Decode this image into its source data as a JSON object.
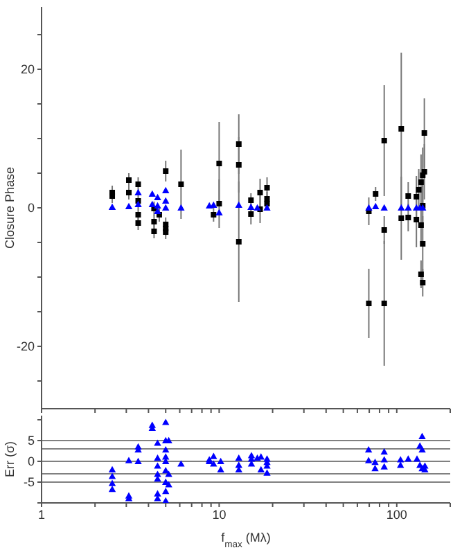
{
  "chart_data": [
    {
      "type": "scatter",
      "ylabel": "Closure Phase",
      "xlim": [
        1,
        200
      ],
      "ylim": [
        -29,
        29
      ],
      "xticks": [
        1,
        {
          "value": 2,
          "label": null
        },
        {
          "value": 3,
          "label": null
        },
        {
          "value": 4,
          "label": null
        },
        {
          "value": 5,
          "label": null
        },
        {
          "value": 6,
          "label": null
        },
        {
          "value": 7,
          "label": null
        },
        {
          "value": 8,
          "label": null
        },
        {
          "value": 9,
          "label": null
        },
        10,
        {
          "value": 20,
          "label": null
        },
        {
          "value": 30,
          "label": null
        },
        {
          "value": 40,
          "label": null
        },
        {
          "value": 50,
          "label": null
        },
        {
          "value": 60,
          "label": null
        },
        {
          "value": 70,
          "label": null
        },
        {
          "value": 80,
          "label": null
        },
        {
          "value": 90,
          "label": null
        },
        100,
        {
          "value": 200,
          "label": null
        }
      ],
      "yticks": [
        {
          "value": -25,
          "label": null
        },
        -20,
        {
          "value": -15,
          "label": null
        },
        {
          "value": -10,
          "label": null
        },
        {
          "value": -5,
          "label": null
        },
        0,
        {
          "value": 5,
          "label": null
        },
        {
          "value": 10,
          "label": null
        },
        {
          "value": 15,
          "label": null
        },
        20,
        {
          "value": 25,
          "label": null
        }
      ],
      "log": "x",
      "tick_labels": "y",
      "series": [
        {
          "color": "#000000",
          "marker": "square",
          "x": [
            2.5,
            2.5,
            3.1,
            3.1,
            3.5,
            3.5,
            3.5,
            3.5,
            4.3,
            4.3,
            4.3,
            4.6,
            5.0,
            5.0,
            5.0,
            5.0,
            6.1,
            9.3,
            10,
            10,
            12.9,
            12.9,
            12.9,
            15.1,
            15.1,
            17,
            17,
            18.6,
            18.6,
            18.6,
            69.6,
            69.6,
            76,
            85,
            85,
            85,
            106,
            106,
            116,
            116,
            129,
            129,
            133,
            137,
            137,
            137,
            140,
            140,
            140,
            140,
            143,
            143
          ],
          "values": [
            2.2,
            1.7,
            4.0,
            2.2,
            3.4,
            1.0,
            -1.0,
            -2.2,
            -0.1,
            -2.0,
            -3.4,
            -1.0,
            5.3,
            -2.4,
            -3.0,
            -3.5,
            3.4,
            -1.0,
            6.4,
            0.6,
            9.2,
            6.2,
            -4.9,
            1.1,
            -0.9,
            2.2,
            -0.2,
            2.9,
            1.3,
            0.6,
            -0.5,
            -13.8,
            2.0,
            9.7,
            -3.2,
            -13.8,
            11.4,
            -1.5,
            1.7,
            -1.4,
            1.6,
            -1.7,
            2.6,
            3.7,
            -2.5,
            -9.6,
            4.7,
            0.3,
            -5.2,
            -10.8,
            10.8,
            5.2
          ],
          "errors": [
            1,
            1,
            1,
            1,
            1,
            1,
            1,
            1,
            1,
            1,
            1,
            1,
            1.5,
            1,
            1,
            1,
            5,
            1,
            6,
            3.5,
            4.3,
            4,
            8.7,
            1,
            1.5,
            2,
            2,
            1.5,
            1,
            1,
            2,
            5,
            1,
            8,
            2,
            9,
            11,
            6,
            2,
            2,
            3,
            4,
            3,
            4,
            3,
            2,
            4,
            3,
            4,
            2,
            5,
            4
          ]
        },
        {
          "color": "#0000ff",
          "marker": "triangle",
          "x": [
            2.5,
            3.1,
            3.5,
            3.5,
            4.2,
            4.2,
            4.5,
            4.5,
            4.5,
            5.0,
            5.0,
            5.0,
            6.1,
            8.8,
            9.3,
            10,
            12.9,
            15.1,
            16.4,
            18.6,
            69.6,
            76,
            85,
            106,
            116,
            129,
            135,
            140
          ],
          "values": [
            0.1,
            0.2,
            2.2,
            0.5,
            2.0,
            0.5,
            1.5,
            0.3,
            -0.5,
            2.5,
            1.0,
            0,
            0,
            0.3,
            0.4,
            -0.7,
            0.4,
            0.1,
            0,
            0,
            0,
            0.2,
            0,
            0,
            0,
            0,
            0,
            0
          ]
        }
      ]
    },
    {
      "type": "scatter",
      "ylabel": "Err (σ)",
      "xlabel": "f$_{max}$ (Mλ)",
      "xlim": [
        1,
        200
      ],
      "ylim": [
        -10,
        11
      ],
      "xticks": [
        1,
        {
          "value": 2,
          "label": null
        },
        {
          "value": 3,
          "label": null
        },
        {
          "value": 4,
          "label": null
        },
        {
          "value": 5,
          "label": null
        },
        {
          "value": 6,
          "label": null
        },
        {
          "value": 7,
          "label": null
        },
        {
          "value": 8,
          "label": null
        },
        {
          "value": 9,
          "label": null
        },
        10,
        {
          "value": 20,
          "label": null
        },
        {
          "value": 30,
          "label": null
        },
        {
          "value": 40,
          "label": null
        },
        {
          "value": 50,
          "label": null
        },
        {
          "value": 60,
          "label": null
        },
        {
          "value": 70,
          "label": null
        },
        {
          "value": 80,
          "label": null
        },
        {
          "value": 90,
          "label": null
        },
        100,
        {
          "value": 200,
          "label": null
        }
      ],
      "yticks": [
        {
          "value": -10,
          "label": null
        },
        -5,
        0,
        5,
        {
          "value": 10,
          "label": null
        }
      ],
      "log": "x",
      "ref_lines": [
        {
          "axis": "y",
          "value": 5,
          "color": "#808080"
        },
        {
          "axis": "y",
          "value": 3,
          "color": "#808080"
        },
        {
          "axis": "y",
          "value": 0,
          "color": "#808080"
        },
        {
          "axis": "y",
          "value": -3,
          "color": "#808080"
        },
        {
          "axis": "y",
          "value": -5,
          "color": "#808080"
        }
      ],
      "series": [
        {
          "color": "#0000ff",
          "marker": "triangle",
          "x": [
            2.5,
            2.5,
            2.5,
            2.5,
            3.1,
            3.1,
            3.1,
            3.5,
            3.5,
            3.5,
            4.2,
            4.2,
            4.5,
            4.5,
            4.5,
            4.5,
            4.5,
            4.5,
            4.5,
            5.0,
            5.0,
            5.0,
            5.0,
            5.0,
            5.0,
            5.0,
            5.0,
            5.0,
            5.2,
            5.2,
            5.2,
            6.1,
            8.8,
            8.8,
            9.3,
            9.3,
            10.2,
            10.2,
            12.9,
            12.9,
            12.9,
            15.2,
            15.2,
            15.2,
            16.4,
            17.2,
            17.2,
            18.6,
            18.6,
            18.6,
            18.6,
            69.4,
            69.4,
            75.5,
            75.5,
            85,
            85,
            85,
            105,
            105,
            116,
            130,
            135,
            135,
            139,
            139,
            139,
            144,
            144
          ],
          "values": [
            -2.0,
            -3.6,
            -5.3,
            -6.7,
            0.2,
            -8.3,
            -8.9,
            3.5,
            2.8,
            0,
            8.7,
            8.0,
            4.4,
            0.8,
            -1.1,
            -3.1,
            -4.2,
            -7.8,
            -8.9,
            9.4,
            5.0,
            2.8,
            1.1,
            0,
            -2.2,
            -5.0,
            -7.2,
            -9.5,
            5.0,
            -3.1,
            -5.6,
            -0.6,
            0.4,
            0,
            1.2,
            -0.6,
            0,
            -2.0,
            0.8,
            -0.9,
            -2.0,
            1.4,
            0.6,
            -0.6,
            0.8,
            1.1,
            -2.0,
            0.6,
            -0.2,
            -1.1,
            -2.8,
            2.8,
            0.2,
            -0.2,
            -1.7,
            2.3,
            0.4,
            -1.3,
            0.4,
            -0.9,
            0.6,
            0.6,
            3.7,
            -0.9,
            6.0,
            2.8,
            -1.7,
            -1.1,
            -2.0
          ]
        }
      ]
    }
  ]
}
